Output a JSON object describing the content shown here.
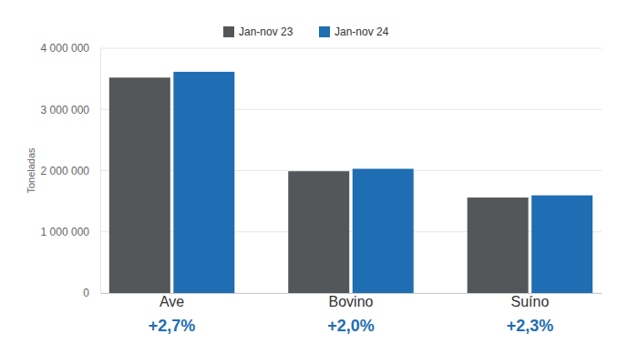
{
  "chart_data": {
    "type": "bar",
    "categories": [
      "Ave",
      "Bovino",
      "Suíno"
    ],
    "series": [
      {
        "name": "Jan-nov 23",
        "color": "#54575a",
        "values": [
          3520000,
          1990000,
          1560000
        ]
      },
      {
        "name": "Jan-nov 24",
        "color": "#1f6db3",
        "values": [
          3615000,
          2030000,
          1596000
        ]
      }
    ],
    "annotations": [
      "+2,7%",
      "+2,0%",
      "+2,3%"
    ],
    "y_label": "Toneladas",
    "ylim": [
      0,
      4000000
    ],
    "yticks": [
      0,
      {
        "value": 1000000,
        "label": "1 000 000"
      },
      {
        "value": 2000000,
        "label": "2 000 000"
      },
      {
        "value": 3000000,
        "label": "3 000 000"
      },
      {
        "value": 4000000,
        "label": "4 000 000"
      }
    ],
    "grid": true,
    "legend": "top"
  }
}
